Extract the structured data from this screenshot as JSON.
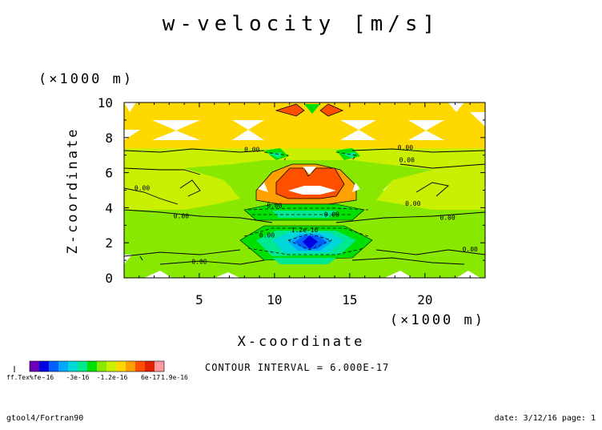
{
  "chart_data": {
    "type": "heatmap",
    "title": "w-velocity [m/s]",
    "xlabel": "X-coordinate",
    "ylabel": "Z-coordinate",
    "x_unit": "(×1000 m)",
    "y_unit": "(×1000 m)",
    "xlim": [
      0,
      24
    ],
    "ylim": [
      0,
      10
    ],
    "x_ticks": [
      5,
      10,
      15,
      20
    ],
    "y_ticks": [
      0,
      2,
      4,
      6,
      8,
      10
    ],
    "x_tick_labels": [
      "5",
      "10",
      "15",
      "20"
    ],
    "y_tick_labels": [
      "0",
      "2",
      "4",
      "6",
      "8",
      "10"
    ],
    "contour_labels": [
      {
        "text": "0.00",
        "x": 8.5,
        "y": 7.2
      },
      {
        "text": "0.00",
        "x": 18.7,
        "y": 7.3
      },
      {
        "text": "0.00",
        "x": 18.8,
        "y": 6.6
      },
      {
        "text": "0.00",
        "x": 1.2,
        "y": 5.0
      },
      {
        "text": "0.00",
        "x": 3.8,
        "y": 3.4
      },
      {
        "text": "0.00",
        "x": 10.0,
        "y": 4.0
      },
      {
        "text": "0.00",
        "x": 13.8,
        "y": 3.5
      },
      {
        "text": "0.00",
        "x": 19.2,
        "y": 4.1
      },
      {
        "text": "0.00",
        "x": 21.5,
        "y": 3.3
      },
      {
        "text": "0.00",
        "x": 23.0,
        "y": 1.5
      },
      {
        "text": "0.00",
        "x": 5.0,
        "y": 0.8
      },
      {
        "text": "0.00",
        "x": 9.5,
        "y": 2.3
      },
      {
        "text": "1.2e-16",
        "x": 12.0,
        "y": 2.6
      }
    ],
    "legend": {
      "placement": "bottom-left",
      "colors": [
        "#6a00b8",
        "#0000e0",
        "#0060ff",
        "#00a8ff",
        "#00d8d8",
        "#00e890",
        "#00e000",
        "#88e800",
        "#c8f000",
        "#ffd800",
        "#ffa000",
        "#ff5000",
        "#e02000",
        "#ff9aa0"
      ],
      "tick_labels": [
        "-16",
        "-3e-16",
        "-1.2e-16",
        "6e-17",
        "1.9e-16"
      ],
      "stacked_prefix": "ff.Tex%fe-"
    },
    "contour_interval": "CONTOUR INTERVAL = 6.000E-17"
  },
  "footer": {
    "left": "gtool4/Fortran90",
    "right": "date: 3/12/16 page: 1"
  },
  "colors": {
    "background_field": "#88e800",
    "light_band": "#c8f000",
    "yellow": "#ffd800",
    "orange": "#ffa000",
    "red": "#ff5000",
    "cyan": "#00e890",
    "blue": "#0000e0"
  }
}
